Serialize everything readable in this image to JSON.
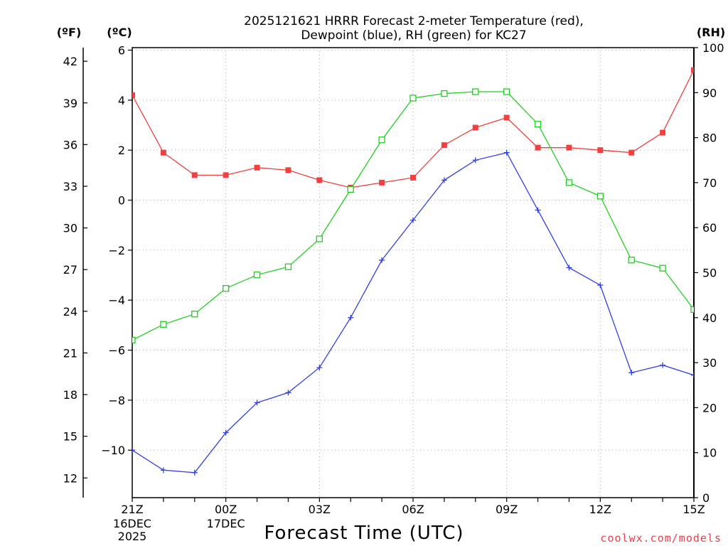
{
  "chart_data": {
    "type": "line",
    "title_line1": "2025121621 HRRR Forecast 2-meter Temperature (red),",
    "title_line2": "Dewpoint (blue), RH (green) for KC27",
    "xlabel": "Forecast Time (UTC)",
    "unit_f": "(ºF)",
    "unit_c": "(ºC)",
    "unit_rh": "(RH)",
    "credit": "coolwx.com/models",
    "credit_color": "#e8404a",
    "hours": [
      0,
      1,
      2,
      3,
      4,
      5,
      6,
      7,
      8,
      9,
      10,
      11,
      12,
      13,
      14,
      15,
      16,
      17,
      18
    ],
    "x_tick_hours": [
      0,
      3,
      6,
      9,
      12,
      15,
      18
    ],
    "x_tick_labels": [
      "21Z",
      "00Z",
      "03Z",
      "06Z",
      "09Z",
      "12Z",
      "15Z"
    ],
    "x_tick_sub1": [
      "16DEC",
      "17DEC",
      "",
      "",
      "",
      "",
      ""
    ],
    "x_tick_sub2": [
      "2025",
      "",
      "",
      "",
      "",
      "",
      ""
    ],
    "xlim": [
      0,
      18
    ],
    "c_ticks": [
      6,
      4,
      2,
      0,
      -2,
      -4,
      -6,
      -8,
      -10
    ],
    "c_tick_labels": [
      "6",
      "4",
      "2",
      "0",
      "−2",
      "−4",
      "−6",
      "−8",
      "−10"
    ],
    "ylim_c": [
      -11.9,
      6.1
    ],
    "f_ticks": [
      42,
      39,
      36,
      33,
      30,
      27,
      24,
      21,
      18,
      15,
      12
    ],
    "rh_ticks": [
      100,
      90,
      80,
      70,
      60,
      50,
      40,
      30,
      20,
      10,
      0
    ],
    "ylim_rh": [
      0,
      100
    ],
    "series": [
      {
        "name": "Temperature",
        "color": "#f04040",
        "marker": "filled-square",
        "axis": "c",
        "values": [
          4.2,
          1.9,
          1.0,
          1.0,
          1.3,
          1.2,
          0.8,
          0.5,
          0.7,
          0.9,
          2.2,
          2.9,
          3.3,
          2.1,
          2.1,
          2.0,
          1.9,
          2.7,
          5.2
        ]
      },
      {
        "name": "Dewpoint",
        "color": "#3040e8",
        "marker": "plus",
        "axis": "c",
        "values": [
          -10.0,
          -10.8,
          -10.9,
          -9.3,
          -8.1,
          -7.7,
          -6.7,
          -4.7,
          -2.4,
          -0.8,
          0.8,
          1.6,
          1.9,
          -0.4,
          -2.7,
          -3.4,
          -6.9,
          -6.6,
          -7.0
        ]
      },
      {
        "name": "RH",
        "color": "#20d020",
        "marker": "open-square",
        "axis": "rh",
        "values": [
          35,
          38.5,
          40.8,
          46.5,
          49.5,
          51.3,
          57.5,
          68.5,
          79.5,
          88.8,
          89.8,
          90.2,
          90.2,
          83,
          70,
          67,
          52.8,
          51,
          41.8
        ]
      }
    ]
  }
}
